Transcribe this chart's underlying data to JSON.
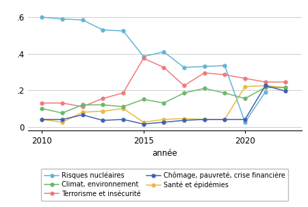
{
  "series": {
    "risques_nucleaires": {
      "years": [
        2010,
        2011,
        2012,
        2013,
        2014,
        2015,
        2016,
        2017,
        2018,
        2019,
        2020,
        2021
      ],
      "values": [
        0.6,
        0.59,
        0.585,
        0.53,
        0.525,
        0.385,
        0.41,
        0.325,
        0.33,
        0.335,
        0.025,
        0.19
      ],
      "color": "#62b4d4",
      "label": "Risques nucléaires"
    },
    "terrorisme_insecurite": {
      "years": [
        2010,
        2011,
        2012,
        2013,
        2014,
        2015,
        2016,
        2017,
        2018,
        2019,
        2020,
        2021,
        2022
      ],
      "values": [
        0.13,
        0.13,
        0.11,
        0.155,
        0.185,
        0.375,
        0.325,
        0.225,
        0.295,
        0.285,
        0.265,
        0.245,
        0.245
      ],
      "color": "#f07878",
      "label": "Terrorisme et insécurité"
    },
    "sante_epidemies": {
      "years": [
        2010,
        2011,
        2012,
        2013,
        2014,
        2015,
        2016,
        2017,
        2018,
        2019,
        2020,
        2021,
        2022
      ],
      "values": [
        0.04,
        0.025,
        0.08,
        0.085,
        0.1,
        0.025,
        0.04,
        0.045,
        0.04,
        0.04,
        0.22,
        0.225,
        0.215
      ],
      "color": "#e8b840",
      "label": "Santé et épidémies"
    },
    "climat_environnement": {
      "years": [
        2010,
        2011,
        2012,
        2013,
        2014,
        2015,
        2016,
        2017,
        2018,
        2019,
        2020,
        2021,
        2022
      ],
      "values": [
        0.1,
        0.075,
        0.12,
        0.12,
        0.11,
        0.15,
        0.13,
        0.185,
        0.21,
        0.185,
        0.155,
        0.215,
        0.215
      ],
      "color": "#6ab86a",
      "label": "Climat, environnement"
    },
    "chomage_pauvrete": {
      "years": [
        2010,
        2011,
        2012,
        2013,
        2014,
        2015,
        2016,
        2017,
        2018,
        2019,
        2020,
        2021,
        2022
      ],
      "values": [
        0.04,
        0.04,
        0.065,
        0.035,
        0.04,
        0.015,
        0.025,
        0.035,
        0.04,
        0.04,
        0.04,
        0.225,
        0.195
      ],
      "color": "#4060b0",
      "label": "Chômage, pauvreté, crise financière"
    }
  },
  "xlabel": "année",
  "ylim": [
    -0.02,
    0.66
  ],
  "yticks": [
    0.0,
    0.2,
    0.4,
    0.6
  ],
  "ytick_labels": [
    "0",
    ".2",
    ".4",
    ".6"
  ],
  "xticks": [
    2010,
    2015,
    2020
  ],
  "background_color": "#ffffff",
  "grid_color": "#cccccc",
  "legend_order": [
    "risques_nucleaires",
    "climat_environnement",
    "terrorisme_insecurite",
    "chomage_pauvrete",
    "sante_epidemies"
  ]
}
